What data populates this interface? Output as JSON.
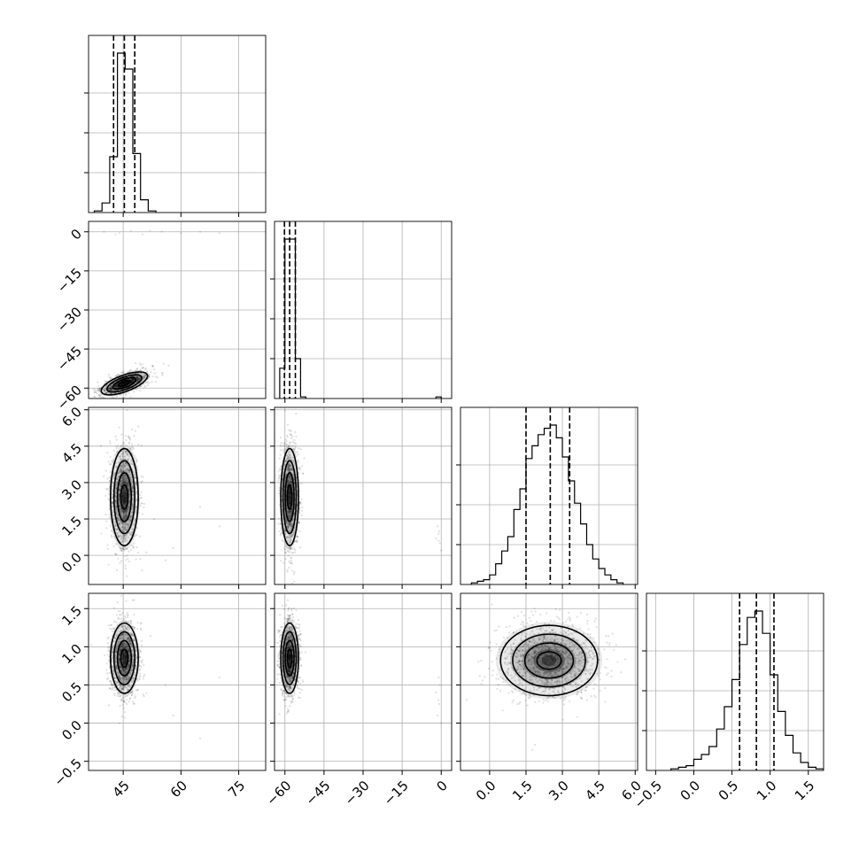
{
  "chart_data": {
    "type": "corner",
    "num_params": 4,
    "axes": [
      {
        "range": [
          36,
          82
        ],
        "ticks": [
          45,
          60,
          75
        ],
        "tick_labels": [
          "45",
          "60",
          "75"
        ]
      },
      {
        "range": [
          -64,
          4
        ],
        "ticks": [
          -60,
          -45,
          -30,
          -15,
          0
        ],
        "tick_labels": [
          "−60",
          "−45",
          "−30",
          "−15",
          "0"
        ]
      },
      {
        "range": [
          -1.2,
          6.1
        ],
        "ticks": [
          0.0,
          1.5,
          3.0,
          4.5,
          6.0
        ],
        "tick_labels": [
          "0.0",
          "1.5",
          "3.0",
          "4.5",
          "6.0"
        ]
      },
      {
        "range": [
          -0.62,
          1.7
        ],
        "ticks": [
          -0.5,
          0.0,
          0.5,
          1.0,
          1.5
        ],
        "tick_labels": [
          "−0.5",
          "0.0",
          "0.5",
          "1.0",
          "1.5"
        ]
      }
    ],
    "marginals": [
      {
        "param": 0,
        "quantiles": [
          42.5,
          45.3,
          48.0
        ],
        "bins": [
          [
            37.5,
            39.5,
            1
          ],
          [
            39.5,
            41.5,
            6
          ],
          [
            41.5,
            43.5,
            35
          ],
          [
            43.5,
            45.5,
            100
          ],
          [
            45.5,
            47.5,
            90
          ],
          [
            47.5,
            49.5,
            37
          ],
          [
            49.5,
            51.5,
            8
          ],
          [
            51.5,
            53.5,
            1
          ]
        ]
      },
      {
        "param": 1,
        "quantiles": [
          -60.2,
          -58.2,
          -56.0
        ],
        "bins": [
          [
            -62,
            -60,
            19
          ],
          [
            -60,
            -58,
            100
          ],
          [
            -58,
            -56,
            100
          ],
          [
            -56,
            -54,
            25
          ],
          [
            -54,
            -52,
            1
          ],
          [
            -2,
            0,
            1
          ]
        ]
      },
      {
        "param": 2,
        "quantiles": [
          1.5,
          2.5,
          3.3
        ],
        "bins": [
          [
            -0.75,
            -0.5,
            1
          ],
          [
            -0.5,
            -0.25,
            2
          ],
          [
            -0.25,
            0,
            3
          ],
          [
            0,
            0.25,
            6
          ],
          [
            0.25,
            0.5,
            13
          ],
          [
            0.5,
            0.75,
            21
          ],
          [
            0.75,
            1.0,
            30
          ],
          [
            1.0,
            1.25,
            47
          ],
          [
            1.25,
            1.5,
            60
          ],
          [
            1.5,
            1.75,
            79
          ],
          [
            1.75,
            2.0,
            87
          ],
          [
            2.0,
            2.25,
            94
          ],
          [
            2.25,
            2.5,
            98
          ],
          [
            2.5,
            2.75,
            100
          ],
          [
            2.75,
            3.0,
            92
          ],
          [
            3.0,
            3.25,
            80
          ],
          [
            3.25,
            3.5,
            65
          ],
          [
            3.5,
            3.75,
            51
          ],
          [
            3.75,
            4.0,
            38
          ],
          [
            4.0,
            4.25,
            25
          ],
          [
            4.25,
            4.5,
            16
          ],
          [
            4.5,
            4.75,
            10
          ],
          [
            4.75,
            5.0,
            6
          ],
          [
            5.0,
            5.25,
            3
          ],
          [
            5.25,
            5.5,
            1
          ]
        ]
      },
      {
        "param": 3,
        "quantiles": [
          0.6,
          0.82,
          1.05
        ],
        "bins": [
          [
            -0.3,
            -0.2,
            1
          ],
          [
            -0.2,
            -0.1,
            2
          ],
          [
            -0.1,
            0.0,
            3
          ],
          [
            0.0,
            0.1,
            7
          ],
          [
            0.1,
            0.2,
            10
          ],
          [
            0.2,
            0.3,
            15
          ],
          [
            0.3,
            0.4,
            26
          ],
          [
            0.4,
            0.5,
            40
          ],
          [
            0.5,
            0.6,
            57
          ],
          [
            0.6,
            0.7,
            79
          ],
          [
            0.7,
            0.8,
            96
          ],
          [
            0.8,
            0.9,
            100
          ],
          [
            0.9,
            1.0,
            86
          ],
          [
            1.0,
            1.1,
            60
          ],
          [
            1.1,
            1.2,
            37
          ],
          [
            1.2,
            1.3,
            22
          ],
          [
            1.3,
            1.4,
            11
          ],
          [
            1.4,
            1.5,
            5
          ],
          [
            1.5,
            1.6,
            2
          ],
          [
            1.6,
            1.7,
            1
          ]
        ]
      }
    ],
    "joints": [
      {
        "x": 0,
        "y": 1,
        "center": [
          45.3,
          -58.2
        ],
        "sd": [
          3.0,
          2.2
        ],
        "rho": 0.65,
        "outliers": [
          [
            40,
            0
          ],
          [
            43,
            -1
          ],
          [
            47,
            0.5
          ],
          [
            50,
            -1
          ],
          [
            55,
            0
          ],
          [
            60,
            -0.5
          ],
          [
            65,
            0
          ],
          [
            70,
            -0.5
          ],
          [
            52,
            0.5
          ],
          [
            44,
            -0.5
          ]
        ]
      },
      {
        "x": 0,
        "y": 2,
        "center": [
          45.3,
          2.4
        ],
        "sd": [
          1.8,
          1.0
        ],
        "rho": 0.0,
        "outliers": [
          [
            70,
            1.2
          ],
          [
            58,
            0.3
          ],
          [
            65,
            2.0
          ],
          [
            56,
            -0.2
          ]
        ]
      },
      {
        "x": 1,
        "y": 2,
        "center": [
          -58.2,
          2.4
        ],
        "sd": [
          1.7,
          1.0
        ],
        "rho": 0.0,
        "outliers": [
          [
            -1,
            0.9
          ],
          [
            -0.5,
            0.5
          ],
          [
            -1.5,
            1.2
          ],
          [
            0,
            0.2
          ],
          [
            -2,
            0.7
          ],
          [
            -0.8,
            1.0
          ],
          [
            -1,
            0.6
          ]
        ]
      },
      {
        "x": 0,
        "y": 3,
        "center": [
          45.3,
          0.85
        ],
        "sd": [
          1.8,
          0.23
        ],
        "rho": 0.0,
        "outliers": [
          [
            70,
            0.6
          ],
          [
            58,
            0.1
          ],
          [
            65,
            -0.2
          ],
          [
            56,
            0.5
          ]
        ]
      },
      {
        "x": 1,
        "y": 3,
        "center": [
          -58.2,
          0.85
        ],
        "sd": [
          1.7,
          0.23
        ],
        "rho": 0.0,
        "outliers": [
          [
            -1,
            0.3
          ],
          [
            -0.5,
            0.5
          ],
          [
            -1.5,
            0.1
          ],
          [
            0,
            0.0
          ],
          [
            -2,
            0.4
          ],
          [
            -0.8,
            0.25
          ],
          [
            -1,
            0.6
          ]
        ]
      },
      {
        "x": 2,
        "y": 3,
        "center": [
          2.45,
          0.82
        ],
        "sd": [
          1.0,
          0.23
        ],
        "rho": 0.0,
        "outliers": []
      }
    ],
    "contour_levels_sigma": [
      0.5,
      1.0,
      1.5,
      2.0
    ]
  }
}
